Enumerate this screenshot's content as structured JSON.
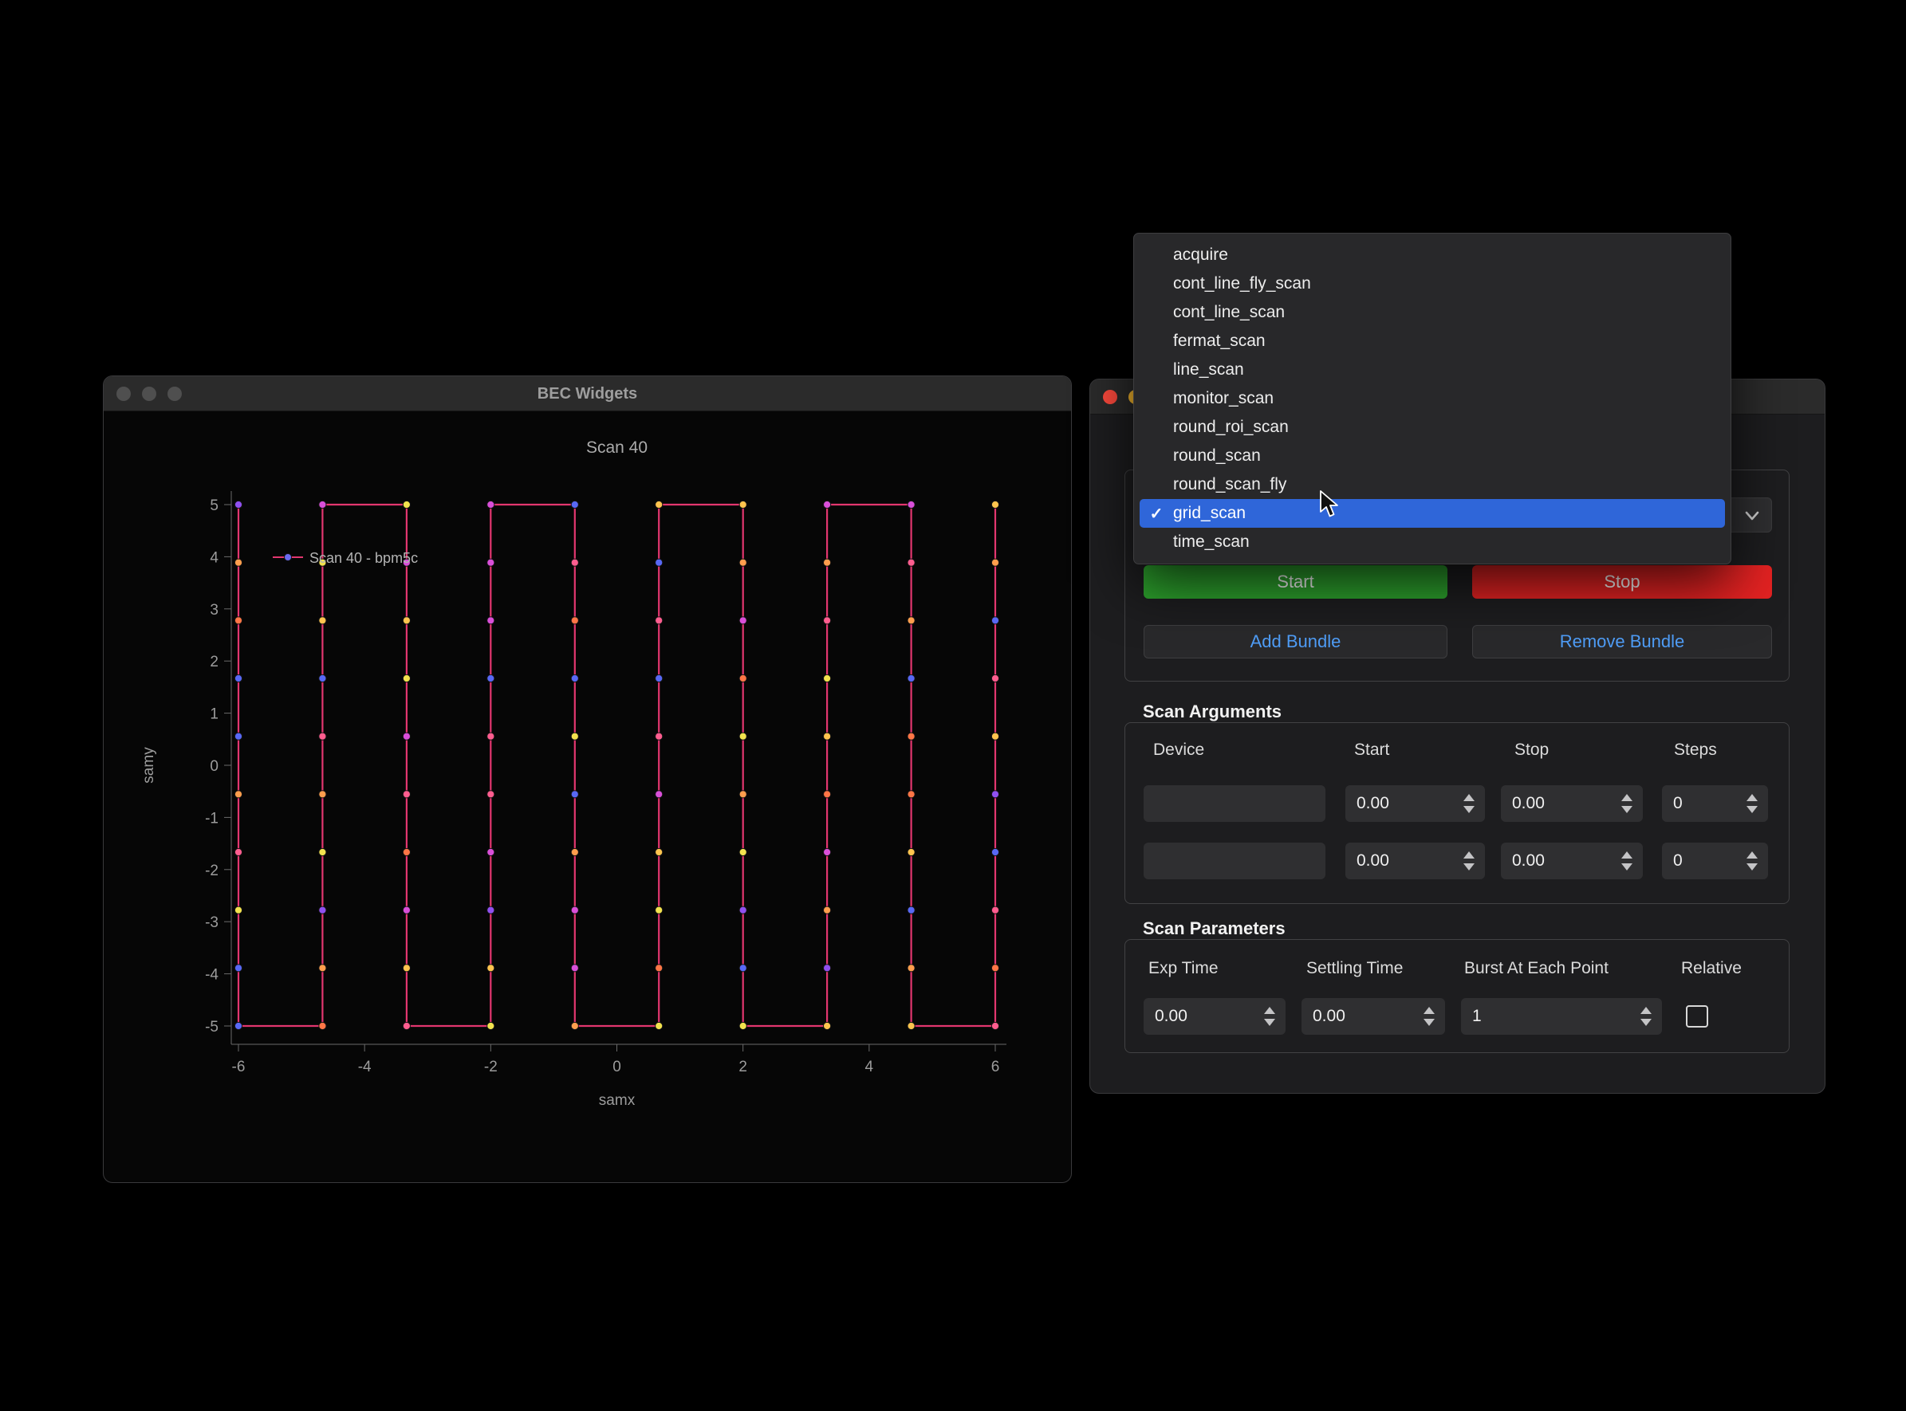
{
  "left_window": {
    "title": "BEC Widgets"
  },
  "chart_data": {
    "type": "scatter",
    "title": "Scan 40",
    "xlabel": "samx",
    "ylabel": "samy",
    "legend": "Scan 40 - bpm5c",
    "legend_position": "top-left",
    "legend_marker_color": "#6a6af0",
    "xlim": [
      -6,
      6
    ],
    "ylim": [
      -5,
      5
    ],
    "x_ticks": [
      -6,
      -4,
      -2,
      0,
      2,
      4,
      6
    ],
    "y_ticks": [
      5,
      4,
      3,
      2,
      1,
      0,
      -1,
      -2,
      -3,
      -4,
      -5
    ],
    "grid": false,
    "scan_grid": {
      "pattern": "grid_scan snake",
      "x_start": -6,
      "x_stop": 6,
      "x_points": 10,
      "y_start": -5,
      "y_stop": 5,
      "y_points": 10
    },
    "line_color": "#e2366f",
    "point_palette": [
      "#ff9e4d",
      "#f2e24e",
      "#ff5d8f",
      "#9050f0",
      "#5868f5",
      "#ff7646",
      "#d94fd9",
      "#ffc44e"
    ],
    "axis_color": "#6a6a6a",
    "text_color": "#9c9c9c"
  },
  "scan_control_window": {
    "scan_select": {
      "selected": "grid_scan"
    },
    "buttons": {
      "start": "Start",
      "stop": "Stop",
      "add_bundle": "Add Bundle",
      "remove_bundle": "Remove Bundle"
    },
    "colors": {
      "start": "#2da32d",
      "stop": "#e42222",
      "accent_text": "#4f9df6",
      "highlight": "#2f66d9"
    },
    "scan_arguments": {
      "title": "Scan Arguments",
      "headers": {
        "device": "Device",
        "start": "Start",
        "stop": "Stop",
        "steps": "Steps"
      },
      "rows": [
        {
          "device": "",
          "start": "0.00",
          "stop": "0.00",
          "steps": "0"
        },
        {
          "device": "",
          "start": "0.00",
          "stop": "0.00",
          "steps": "0"
        }
      ]
    },
    "scan_parameters": {
      "title": "Scan Parameters",
      "headers": {
        "exp_time": "Exp Time",
        "settling_time": "Settling Time",
        "burst": "Burst At Each Point",
        "relative": "Relative"
      },
      "values": {
        "exp_time": "0.00",
        "settling_time": "0.00",
        "burst": "1",
        "relative_checked": false
      }
    }
  },
  "scan_dropdown": {
    "items": [
      "acquire",
      "cont_line_fly_scan",
      "cont_line_scan",
      "fermat_scan",
      "line_scan",
      "monitor_scan",
      "round_roi_scan",
      "round_scan",
      "round_scan_fly",
      "grid_scan",
      "time_scan"
    ],
    "selected_index": 9
  }
}
